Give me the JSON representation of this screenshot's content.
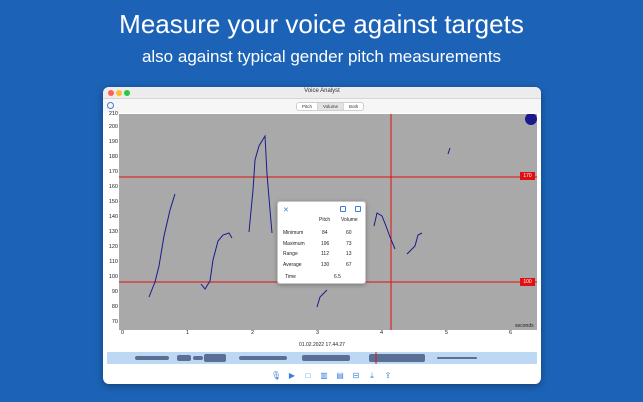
{
  "headline": "Measure your voice against targets",
  "subheadline": "also against typical gender pitch measurements",
  "window": {
    "title": "Voice Analyst",
    "tabs": [
      {
        "label": "Pitch",
        "active": false
      },
      {
        "label": "Volume",
        "active": true
      },
      {
        "label": "Both",
        "active": false
      }
    ]
  },
  "graph": {
    "y_ticks": [
      "210",
      "200",
      "190",
      "180",
      "170",
      "160",
      "150",
      "140",
      "130",
      "120",
      "110",
      "100",
      "90",
      "80",
      "70"
    ],
    "x_ticks": [
      "0",
      "1",
      "2",
      "3",
      "4",
      "5",
      "6"
    ],
    "x_unit": "seconds",
    "target_high": "170",
    "target_low": "100",
    "colors": {
      "background": "#a9a9a9",
      "pitch_line": "#1a1a8c",
      "target": "#e01010",
      "dot": "#1a1a8c"
    }
  },
  "stats_popup": {
    "close_icon": "close-icon",
    "col_pitch": "Pitch",
    "col_volume": "Volume",
    "rows": [
      {
        "label": "Minimum",
        "pitch": "84",
        "volume": "60"
      },
      {
        "label": "Maximum",
        "pitch": "196",
        "volume": "73"
      },
      {
        "label": "Range",
        "pitch": "112",
        "volume": "13"
      },
      {
        "label": "Average",
        "pitch": "130",
        "volume": "67"
      }
    ],
    "time_label": "Time",
    "time_value": "6.5"
  },
  "timestamp": "01.02.2022 17.44.27",
  "bottom_toolbar": [
    "mic-icon",
    "play-icon",
    "stop-icon",
    "chart-icon",
    "calendar-icon",
    "archive-icon",
    "download-icon",
    "share-icon"
  ]
}
